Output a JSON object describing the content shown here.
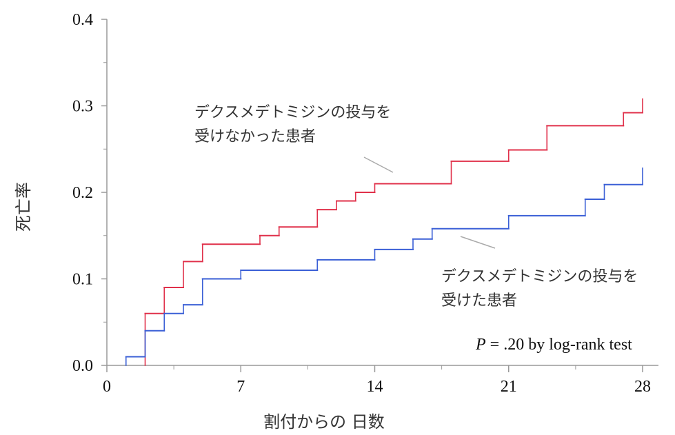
{
  "chart_data": {
    "type": "line",
    "step": true,
    "xlabel": "割付からの 日数",
    "ylabel": "死亡率",
    "xlim": [
      0,
      28
    ],
    "ylim": [
      0.0,
      0.4
    ],
    "x_ticks": [
      0,
      7,
      14,
      21,
      28
    ],
    "x_tick_labels": [
      "0",
      "7",
      "14",
      "21",
      "28"
    ],
    "y_ticks": [
      0.0,
      0.1,
      0.2,
      0.3,
      0.4
    ],
    "y_tick_labels": [
      "0.0",
      "0.1",
      "0.2",
      "0.3",
      "0.4"
    ],
    "grid": false,
    "colors": {
      "not_treated": "#e0304a",
      "treated": "#3a5fd6",
      "axis": "#999999",
      "pointer": "#aaaaaa"
    },
    "series": [
      {
        "key": "not_treated",
        "label_lines": [
          "デクスメデトミジンの投与を",
          "受けなかった患者"
        ],
        "points": [
          [
            2,
            0.0
          ],
          [
            2,
            0.06
          ],
          [
            3,
            0.06
          ],
          [
            3,
            0.09
          ],
          [
            4,
            0.09
          ],
          [
            4,
            0.12
          ],
          [
            5,
            0.12
          ],
          [
            5,
            0.14
          ],
          [
            8,
            0.14
          ],
          [
            8,
            0.15
          ],
          [
            9,
            0.15
          ],
          [
            9,
            0.16
          ],
          [
            11,
            0.16
          ],
          [
            11,
            0.18
          ],
          [
            12,
            0.18
          ],
          [
            12,
            0.19
          ],
          [
            13,
            0.19
          ],
          [
            13,
            0.2
          ],
          [
            14,
            0.2
          ],
          [
            14,
            0.21
          ],
          [
            18,
            0.21
          ],
          [
            18,
            0.236
          ],
          [
            21,
            0.236
          ],
          [
            21,
            0.249
          ],
          [
            23,
            0.249
          ],
          [
            23,
            0.277
          ],
          [
            27,
            0.277
          ],
          [
            27,
            0.292
          ],
          [
            28,
            0.292
          ],
          [
            28,
            0.308
          ]
        ]
      },
      {
        "key": "treated",
        "label_lines": [
          "デクスメデトミジンの投与を",
          "受けた患者"
        ],
        "points": [
          [
            1,
            0.0
          ],
          [
            1,
            0.01
          ],
          [
            2,
            0.01
          ],
          [
            2,
            0.04
          ],
          [
            3,
            0.04
          ],
          [
            3,
            0.06
          ],
          [
            4,
            0.06
          ],
          [
            4,
            0.07
          ],
          [
            5,
            0.07
          ],
          [
            5,
            0.1
          ],
          [
            7,
            0.1
          ],
          [
            7,
            0.11
          ],
          [
            11,
            0.11
          ],
          [
            11,
            0.122
          ],
          [
            14,
            0.122
          ],
          [
            14,
            0.134
          ],
          [
            16,
            0.134
          ],
          [
            16,
            0.146
          ],
          [
            17,
            0.146
          ],
          [
            17,
            0.158
          ],
          [
            21,
            0.158
          ],
          [
            21,
            0.173
          ],
          [
            25,
            0.173
          ],
          [
            25,
            0.192
          ],
          [
            26,
            0.192
          ],
          [
            26,
            0.209
          ],
          [
            28,
            0.209
          ],
          [
            28,
            0.228
          ]
        ]
      }
    ],
    "annotations": {
      "p_value_italic": "P",
      "p_value_rest": " = .20 by log-rank test"
    }
  }
}
